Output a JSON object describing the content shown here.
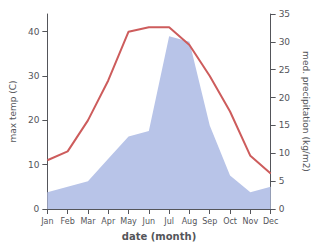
{
  "chart_data": {
    "type": "line",
    "xlabel": "date (month)",
    "ylabel": "max temp (C)",
    "y2label": "med. precipitation (kg/m2)",
    "categories": [
      "Jan",
      "Feb",
      "Mar",
      "Apr",
      "May",
      "Jun",
      "Jul",
      "Aug",
      "Sep",
      "Oct",
      "Nov",
      "Dec"
    ],
    "series": [
      {
        "type": "area",
        "axis": "y2",
        "color": "#b8c4e8",
        "values": [
          3,
          4,
          5,
          9,
          13,
          14,
          31,
          30,
          15,
          6,
          3,
          4
        ]
      },
      {
        "type": "line",
        "color": "#cd5c5c",
        "values": [
          11,
          13,
          20,
          29,
          40,
          41,
          41,
          37,
          30,
          22,
          12,
          8
        ]
      }
    ],
    "ylim": [
      0,
      44
    ],
    "yticks": [
      0,
      10,
      20,
      30,
      40
    ],
    "y2lim": [
      0,
      35
    ],
    "y2ticks": [
      0,
      5,
      10,
      15,
      20,
      25,
      30,
      35
    ],
    "grid": false
  }
}
